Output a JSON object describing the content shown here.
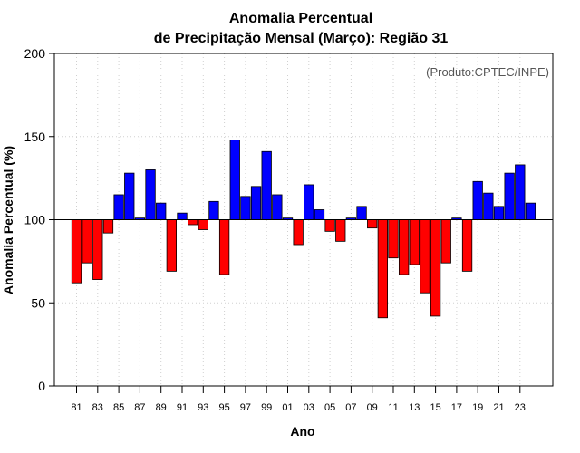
{
  "chart_data": {
    "type": "bar",
    "title_line1": "Anomalia Percentual",
    "title_line2": "de Precipitação Mensal (Março): Região 31",
    "xlabel": "Ano",
    "ylabel": "Anomalia Percentual (%)",
    "source_note": "(Produto:CPTEC/INPE)",
    "baseline": 100,
    "ylim": [
      0,
      200
    ],
    "yticks": [
      0,
      50,
      100,
      150,
      200
    ],
    "above_color": "#0000ff",
    "below_color": "#ff0000",
    "grid": true,
    "categories": [
      "81",
      "82",
      "83",
      "84",
      "85",
      "86",
      "87",
      "88",
      "89",
      "90",
      "91",
      "92",
      "93",
      "94",
      "95",
      "96",
      "97",
      "98",
      "99",
      "00",
      "01",
      "02",
      "03",
      "04",
      "05",
      "06",
      "07",
      "08",
      "09",
      "10",
      "11",
      "12",
      "13",
      "14",
      "15",
      "16",
      "17",
      "18",
      "19",
      "20",
      "21",
      "22",
      "23",
      "24"
    ],
    "xtick_labels": [
      "81",
      "83",
      "85",
      "87",
      "89",
      "91",
      "93",
      "95",
      "97",
      "99",
      "01",
      "03",
      "05",
      "07",
      "09",
      "11",
      "13",
      "15",
      "17",
      "19",
      "21",
      "23"
    ],
    "values": [
      62,
      74,
      64,
      92,
      115,
      128,
      101,
      130,
      110,
      69,
      104,
      97,
      94,
      111,
      67,
      148,
      114,
      120,
      141,
      115,
      101,
      85,
      121,
      106,
      93,
      87,
      101,
      108,
      95,
      41,
      77,
      67,
      73,
      56,
      42,
      74,
      101,
      69,
      123,
      116,
      108,
      128,
      133,
      110
    ]
  }
}
